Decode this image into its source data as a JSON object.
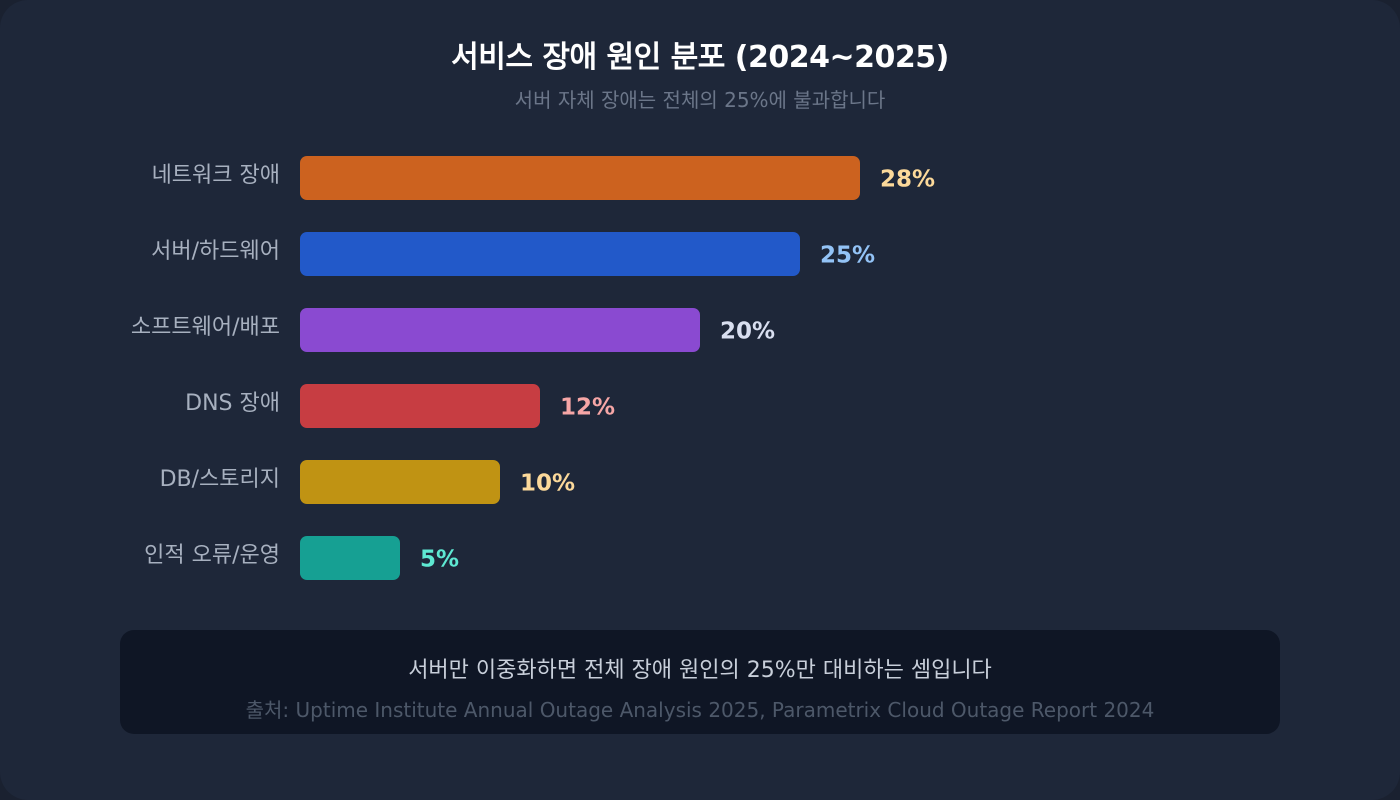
{
  "header": {
    "title": "서비스 장애 원인 분포 (2024~2025)",
    "subtitle": "서버 자체 장애는 전체의 25%에 불과합니다"
  },
  "chart_data": {
    "type": "bar",
    "orientation": "horizontal",
    "title": "서비스 장애 원인 분포 (2024~2025)",
    "subtitle": "서버 자체 장애는 전체의 25%에 불과합니다",
    "xlabel": "",
    "ylabel": "",
    "unit": "%",
    "xlim": [
      0,
      50
    ],
    "grid": false,
    "legend": "none",
    "categories": [
      "네트워크 장애",
      "서버/하드웨어",
      "소프트웨어/배포",
      "DNS 장애",
      "DB/스토리지",
      "인적 오류/운영"
    ],
    "values": [
      28,
      25,
      20,
      12,
      10,
      5
    ],
    "value_labels": [
      "28%",
      "25%",
      "20%",
      "12%",
      "10%",
      "5%"
    ],
    "bar_colors": [
      "#cc621f",
      "#2259c9",
      "#8a4ad1",
      "#c73d42",
      "#c09313",
      "#16a093"
    ],
    "label_colors": [
      "#fcd99a",
      "#93c3f6",
      "#d9dff0",
      "#f6a6a6",
      "#fcd99a",
      "#5ee8d2"
    ]
  },
  "footer": {
    "note": "서버만 이중화하면 전체 장애 원인의 25%만 대비하는 셈입니다",
    "source": "출처: Uptime Institute Annual Outage Analysis 2025, Parametrix Cloud Outage Report 2024"
  },
  "colors": {
    "background": "#1e2739",
    "note_background": "#0f1625",
    "category_label": "#a7b0bf"
  }
}
